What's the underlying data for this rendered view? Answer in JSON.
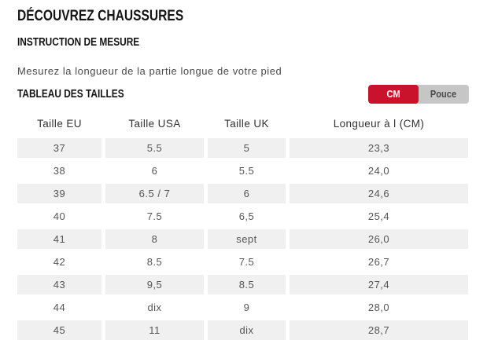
{
  "page": {
    "title": "DÉCOUVREZ CHAUSSURES",
    "section_heading": "INSTRUCTION DE MESURE",
    "instruction": "Mesurez la longueur de la partie longue de votre pied",
    "table_heading": "TABLEAU DES TAILLES"
  },
  "unit_toggle": {
    "options": [
      {
        "label": "CM",
        "selected": true
      },
      {
        "label": "Pouce",
        "selected": false
      }
    ],
    "selected_color": "#c9122b",
    "track_color": "#c6c6c6"
  },
  "size_table": {
    "columns": [
      "Taille EU",
      "Taille USA",
      "Taille UK",
      "Longueur à l (CM)"
    ],
    "row_shade_color": "#f0f0f0",
    "rows": [
      [
        "37",
        "5.5",
        "5",
        "23,3"
      ],
      [
        "38",
        "6",
        "5.5",
        "24,0"
      ],
      [
        "39",
        "6.5 / 7",
        "6",
        "24,6"
      ],
      [
        "40",
        "7.5",
        "6,5",
        "25,4"
      ],
      [
        "41",
        "8",
        "sept",
        "26,0"
      ],
      [
        "42",
        "8.5",
        "7.5",
        "26,7"
      ],
      [
        "43",
        "9,5",
        "8.5",
        "27,4"
      ],
      [
        "44",
        "dix",
        "9",
        "28,0"
      ],
      [
        "45",
        "11",
        "dix",
        "28,7"
      ]
    ]
  }
}
